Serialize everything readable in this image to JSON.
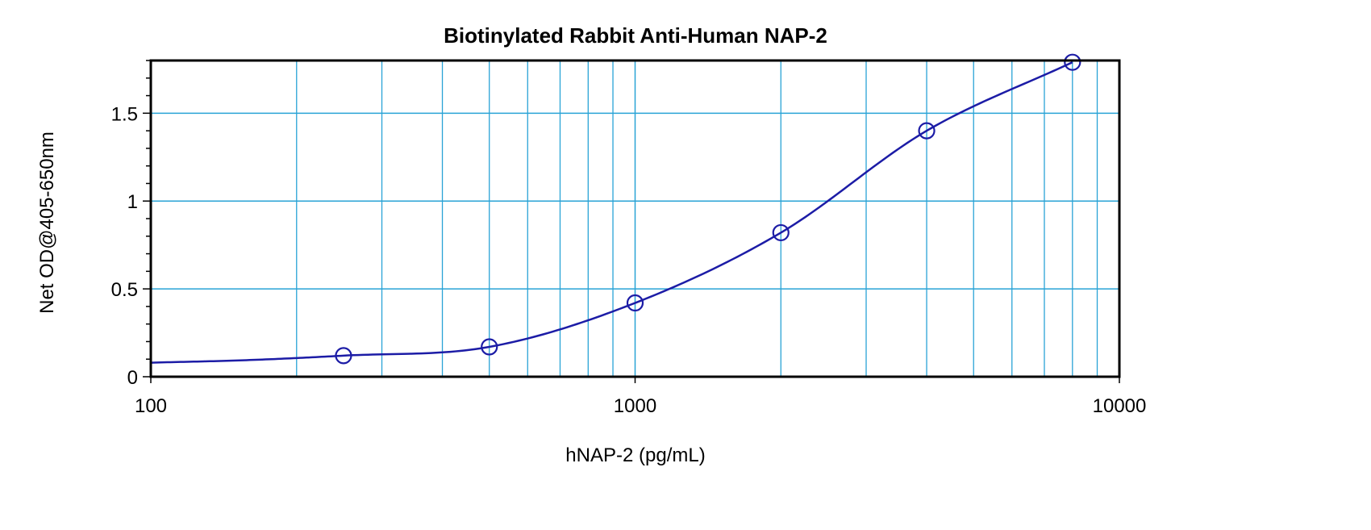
{
  "chart_data": {
    "type": "scatter",
    "title": "Biotinylated Rabbit Anti-Human NAP-2",
    "xlabel": "hNAP-2 (pg/mL)",
    "ylabel": "Net OD@405-650nm",
    "x_scale": "log",
    "xlim": [
      100,
      10000
    ],
    "ylim": [
      0,
      1.8
    ],
    "x_ticks": [
      100,
      1000,
      10000
    ],
    "x_tick_labels": [
      "100",
      "1000",
      "10000"
    ],
    "y_ticks": [
      0,
      0.5,
      1,
      1.5
    ],
    "y_tick_labels": [
      "0",
      "0.5",
      "1",
      "1.5"
    ],
    "grid": true,
    "points": [
      {
        "x": 250,
        "y": 0.12
      },
      {
        "x": 500,
        "y": 0.17
      },
      {
        "x": 1000,
        "y": 0.42
      },
      {
        "x": 2000,
        "y": 0.82
      },
      {
        "x": 4000,
        "y": 1.4
      },
      {
        "x": 8000,
        "y": 1.79
      }
    ],
    "fit_curve": true,
    "colors": {
      "grid": "#29a3d6",
      "series": "#1c1ca6",
      "frame": "#000000"
    }
  }
}
